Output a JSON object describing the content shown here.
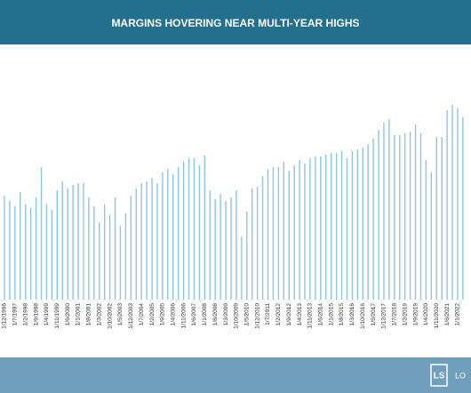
{
  "chart_data": {
    "type": "bar",
    "title": "MARGINS HOVERING NEAR MULTI-YEAR HIGHS",
    "color": "#8ec6e2",
    "categories": [
      "1/12/1996",
      null,
      "1/7/1997",
      null,
      "1/2/1998",
      null,
      "1/9/1998",
      null,
      "1/4/1999",
      null,
      "1/11/1999",
      null,
      "1/6/2000",
      null,
      "1/1/2001",
      null,
      "1/8/2001",
      null,
      "1/3/2002",
      null,
      "1/10/2002",
      null,
      "1/5/2003",
      null,
      "1/12/2003",
      null,
      "1/7/2004",
      null,
      "1/2/2005",
      null,
      "1/9/2005",
      null,
      "1/4/2006",
      null,
      "1/11/2006",
      null,
      "1/6/2007",
      null,
      "1/1/2008",
      null,
      "1/8/2008",
      null,
      "1/3/2009",
      null,
      "1/10/2009",
      null,
      "1/5/2010",
      null,
      "1/12/2010",
      null,
      "1/7/2011",
      null,
      "1/2/2012",
      null,
      "1/9/2012",
      null,
      "1/4/2013",
      null,
      "1/11/2013",
      null,
      "1/6/2014",
      null,
      "1/1/2015",
      null,
      "1/8/2015",
      null,
      "1/3/2016",
      null,
      "1/10/2016",
      null,
      "1/5/2017",
      null,
      "1/12/2017",
      null,
      "1/7/2018",
      null,
      "1/2/2019",
      null,
      "1/9/2019",
      null,
      "1/4/2020",
      null,
      "1/11/2020",
      null,
      "1/6/2021",
      null,
      "1/1/2022",
      null
    ],
    "values": [
      117,
      111,
      105,
      121,
      107,
      103,
      115,
      149,
      107,
      101,
      123,
      133,
      125,
      129,
      131,
      131,
      115,
      105,
      87,
      107,
      95,
      115,
      83,
      97,
      117,
      125,
      131,
      133,
      137,
      131,
      143,
      147,
      141,
      149,
      155,
      159,
      159,
      151,
      162,
      123,
      113,
      119,
      111,
      115,
      123,
      71,
      99,
      125,
      127,
      139,
      147,
      149,
      149,
      155,
      145,
      151,
      157,
      153,
      159,
      161,
      161,
      163,
      165,
      165,
      167,
      159,
      167,
      169,
      171,
      175,
      181,
      191,
      199,
      203,
      185,
      185,
      187,
      189,
      197,
      187,
      157,
      143,
      183,
      183,
      213,
      219,
      215,
      205
    ]
  },
  "footer": {
    "logo_mark": "LS",
    "logo_text": "LO"
  }
}
